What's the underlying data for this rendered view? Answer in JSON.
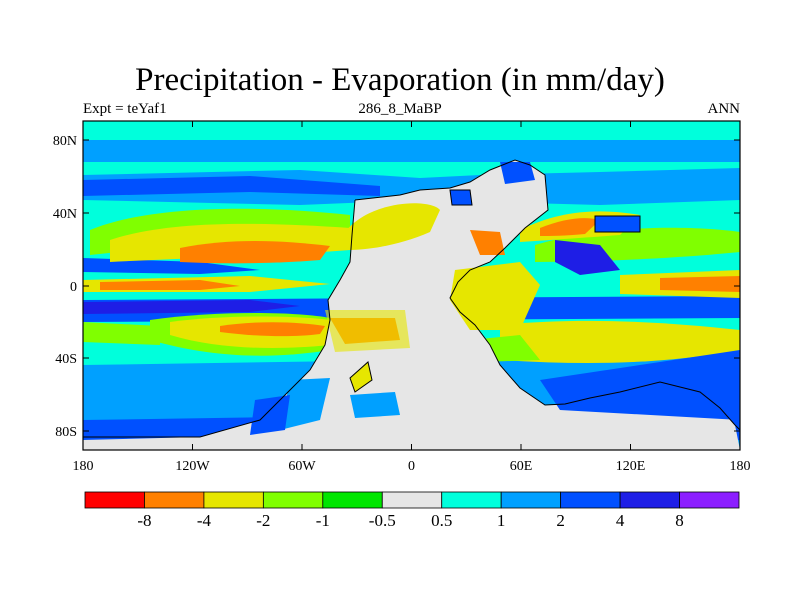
{
  "title": "Precipitation - Evaporation (in mm/day)",
  "subtitle_left": "Expt = teYaf1",
  "subtitle_center": "286_8_MaBP",
  "subtitle_right": "ANN",
  "axes": {
    "lat_ticks": [
      "80N",
      "40N",
      "0",
      "40S",
      "80S"
    ],
    "lon_ticks": [
      "180",
      "120W",
      "60W",
      "0",
      "60E",
      "120E",
      "180"
    ]
  },
  "colorbar": {
    "colors": [
      "#ff0000",
      "#ff8000",
      "#e6e600",
      "#80ff00",
      "#00e600",
      "#e6e6e6",
      "#00ffdc",
      "#00a0ff",
      "#0050ff",
      "#1e1ee6",
      "#8c1eff"
    ],
    "labels": [
      "-8",
      "-4",
      "-2",
      "-1",
      "-0.5",
      "0.5",
      "1",
      "2",
      "4",
      "8"
    ]
  },
  "palette": {
    "dry_strong": "#ff8000",
    "dry": "#e6e600",
    "dry_weak": "#80ff00",
    "neutral": "#e6e6e6",
    "wet_weak": "#00ffdc",
    "wet": "#00a0ff",
    "wet_strong": "#0050ff",
    "wet_very": "#1e1ee6"
  }
}
